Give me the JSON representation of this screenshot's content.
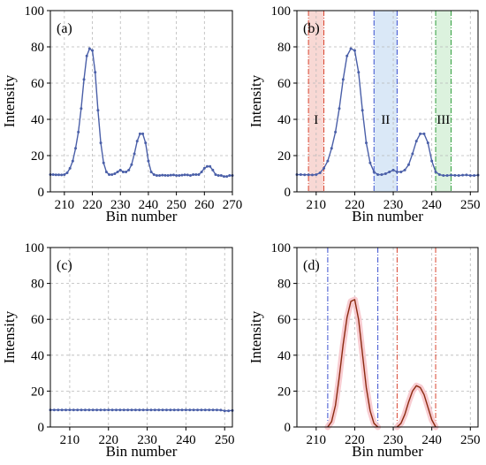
{
  "chart_data": [
    {
      "type": "line",
      "panel_label": "(a)",
      "xlabel": "Bin number",
      "ylabel": "Intensity",
      "xlim": [
        205,
        270
      ],
      "ylim": [
        0,
        100
      ],
      "xticks": [
        210,
        220,
        230,
        240,
        250,
        260,
        270
      ],
      "yticks": [
        0,
        20,
        40,
        60,
        80,
        100
      ],
      "grid": true,
      "series": [
        {
          "color": "#4a5fa8",
          "marker": "dot",
          "x": [
            205,
            206,
            207,
            208,
            209,
            210,
            211,
            212,
            213,
            214,
            215,
            216,
            217,
            218,
            219,
            220,
            221,
            222,
            223,
            224,
            225,
            226,
            227,
            228,
            229,
            230,
            231,
            232,
            233,
            234,
            235,
            236,
            237,
            238,
            239,
            240,
            241,
            242,
            243,
            244,
            245,
            246,
            247,
            248,
            249,
            250,
            251,
            252,
            253,
            254,
            255,
            256,
            257,
            258,
            259,
            260,
            261,
            262,
            263,
            264,
            265,
            266,
            267,
            268,
            269,
            270
          ],
          "y": [
            9.5,
            9.5,
            9.4,
            9.4,
            9.3,
            9.5,
            10.5,
            13,
            17,
            24,
            33,
            46,
            62,
            75,
            79,
            78,
            66,
            45,
            27,
            16,
            11,
            9.5,
            9.5,
            10,
            11,
            12,
            11,
            11,
            12,
            15,
            21,
            28,
            32,
            32,
            27,
            17,
            11,
            9.5,
            9,
            9,
            9.2,
            9.1,
            9,
            9.2,
            9.3,
            9,
            9,
            9.2,
            9.4,
            9.3,
            9,
            9.5,
            9.5,
            9.5,
            11,
            13,
            14,
            14,
            12,
            9.5,
            9,
            9,
            8.5,
            8.5,
            9,
            9
          ]
        }
      ]
    },
    {
      "type": "line",
      "panel_label": "(b)",
      "xlabel": "Bin number",
      "ylabel": "Intensity",
      "xlim": [
        205,
        252
      ],
      "ylim": [
        0,
        100
      ],
      "xticks": [
        210,
        220,
        230,
        240,
        250
      ],
      "yticks": [
        0,
        20,
        40,
        60,
        80,
        100
      ],
      "grid": true,
      "regions": [
        {
          "label": "I",
          "x_start": 208,
          "x_end": 212,
          "fill": "#f2b8b0",
          "edge": "#d9452f"
        },
        {
          "label": "II",
          "x_start": 225,
          "x_end": 231,
          "fill": "#bcd6f0",
          "edge": "#3a4fd0"
        },
        {
          "label": "III",
          "x_start": 241,
          "x_end": 245,
          "fill": "#bfe8c2",
          "edge": "#2f9e3c"
        }
      ],
      "series": [
        {
          "color": "#4a5fa8",
          "marker": "dot",
          "x": [
            205,
            206,
            207,
            208,
            209,
            210,
            211,
            212,
            213,
            214,
            215,
            216,
            217,
            218,
            219,
            220,
            221,
            222,
            223,
            224,
            225,
            226,
            227,
            228,
            229,
            230,
            231,
            232,
            233,
            234,
            235,
            236,
            237,
            238,
            239,
            240,
            241,
            242,
            243,
            244,
            245,
            246,
            247,
            248,
            249,
            250,
            251,
            252
          ],
          "y": [
            9.5,
            9.5,
            9.4,
            9.4,
            9.3,
            9.5,
            10.5,
            13,
            17,
            24,
            33,
            46,
            62,
            75,
            79,
            78,
            66,
            45,
            27,
            16,
            11,
            9.5,
            9.5,
            10,
            11,
            12,
            11,
            11,
            12,
            15,
            21,
            28,
            32,
            32,
            27,
            17,
            11,
            9.5,
            9,
            9,
            9.2,
            9.1,
            9,
            9.2,
            9.3,
            9,
            9,
            9.2
          ]
        }
      ]
    },
    {
      "type": "line",
      "panel_label": "(c)",
      "xlabel": "Bin number",
      "ylabel": "Intensity",
      "xlim": [
        205,
        252
      ],
      "ylim": [
        0,
        100
      ],
      "xticks": [
        210,
        220,
        230,
        240,
        250
      ],
      "yticks": [
        0,
        20,
        40,
        60,
        80,
        100
      ],
      "grid": true,
      "series": [
        {
          "color": "#4a5fa8",
          "marker": "dot",
          "x": [
            205,
            206,
            207,
            208,
            209,
            210,
            211,
            212,
            213,
            214,
            215,
            216,
            217,
            218,
            219,
            220,
            221,
            222,
            223,
            224,
            225,
            226,
            227,
            228,
            229,
            230,
            231,
            232,
            233,
            234,
            235,
            236,
            237,
            238,
            239,
            240,
            241,
            242,
            243,
            244,
            245,
            246,
            247,
            248,
            249,
            250,
            251,
            252
          ],
          "y": [
            9.5,
            9.5,
            9.5,
            9.5,
            9.5,
            9.5,
            9.5,
            9.5,
            9.5,
            9.5,
            9.5,
            9.5,
            9.5,
            9.5,
            9.5,
            9.5,
            9.5,
            9.5,
            9.5,
            9.5,
            9.5,
            9.5,
            9.5,
            9.5,
            9.5,
            9.5,
            9.5,
            9.5,
            9.5,
            9.5,
            9.5,
            9.5,
            9.5,
            9.5,
            9.5,
            9.5,
            9.5,
            9.5,
            9.5,
            9.5,
            9.5,
            9.5,
            9.5,
            9.5,
            9.4,
            9,
            9,
            9.2
          ]
        }
      ]
    },
    {
      "type": "line",
      "panel_label": "(d)",
      "xlabel": "Bin number",
      "ylabel": "Intensity",
      "xlim": [
        205,
        252
      ],
      "ylim": [
        0,
        100
      ],
      "xticks": [
        210,
        220,
        230,
        240,
        250
      ],
      "yticks": [
        0,
        20,
        40,
        60,
        80,
        100
      ],
      "grid": true,
      "vlines": [
        {
          "x": 213,
          "color": "#3a4fd0"
        },
        {
          "x": 226,
          "color": "#3a4fd0"
        },
        {
          "x": 231,
          "color": "#d9452f"
        },
        {
          "x": 241,
          "color": "#d9452f"
        }
      ],
      "series": [
        {
          "color": "#8b2a10",
          "halo": "#f7c6cc",
          "x": [
            213,
            214,
            215,
            216,
            217,
            218,
            219,
            220,
            221,
            222,
            223,
            224,
            225,
            226
          ],
          "y": [
            0,
            3,
            12,
            28,
            46,
            61,
            70,
            71,
            60,
            41,
            22,
            9,
            2,
            0
          ]
        },
        {
          "color": "#8b2a10",
          "halo": "#f7c6cc",
          "x": [
            231,
            232,
            233,
            234,
            235,
            236,
            237,
            238,
            239,
            240,
            241
          ],
          "y": [
            0,
            2,
            7,
            14,
            20,
            23,
            22,
            18,
            11,
            4,
            0
          ]
        }
      ]
    }
  ]
}
